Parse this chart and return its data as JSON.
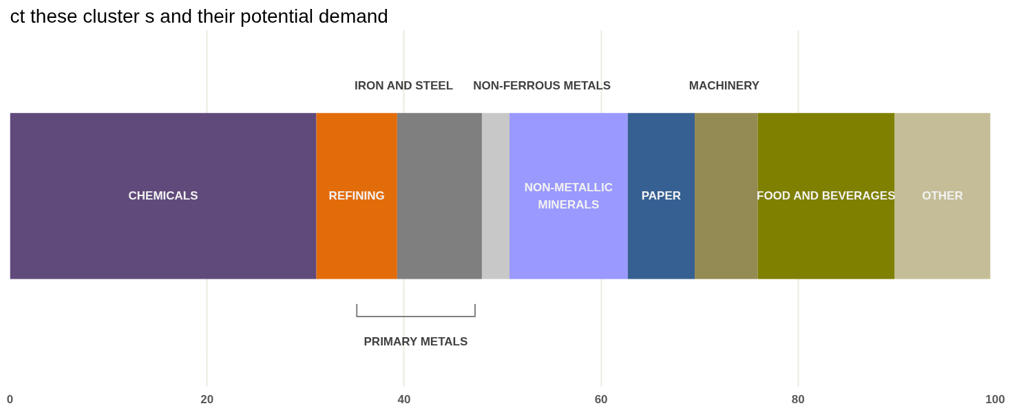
{
  "chart_data": {
    "type": "bar",
    "orientation": "horizontal",
    "stacked": true,
    "title": "ct these cluster s and their potential demand",
    "categories": [
      null
    ],
    "series": [
      {
        "name": "CHEMICALS",
        "color": "#604a7b",
        "values": [
          31.1
        ]
      },
      {
        "name": "REFINING",
        "color": "#e36c0a",
        "values": [
          8.2
        ]
      },
      {
        "name": "IRON AND STEEL",
        "color": "#7f7f7f",
        "values": [
          8.6
        ]
      },
      {
        "name": "NON-FERROUS METALS",
        "color": "#c8c8c8",
        "values": [
          2.8
        ]
      },
      {
        "name": "NON-METALLIC MINERALS",
        "color": "#9999ff",
        "values": [
          12.0
        ]
      },
      {
        "name": "PAPER",
        "color": "#366092",
        "values": [
          6.8
        ]
      },
      {
        "name": "MACHINERY",
        "color": "#948a54",
        "values": [
          6.4
        ]
      },
      {
        "name": "FOOD AND BEVERAGES",
        "color": "#7f7f00",
        "values": [
          13.9
        ]
      },
      {
        "name": "OTHER",
        "color": "#c4bd97",
        "values": [
          9.7
        ]
      }
    ],
    "annotations": [
      "PRIMARY METALS"
    ],
    "xlim": [
      0,
      100
    ],
    "xticks": [
      0,
      20,
      40,
      60,
      80,
      100
    ],
    "grid": "x",
    "legend": false
  }
}
